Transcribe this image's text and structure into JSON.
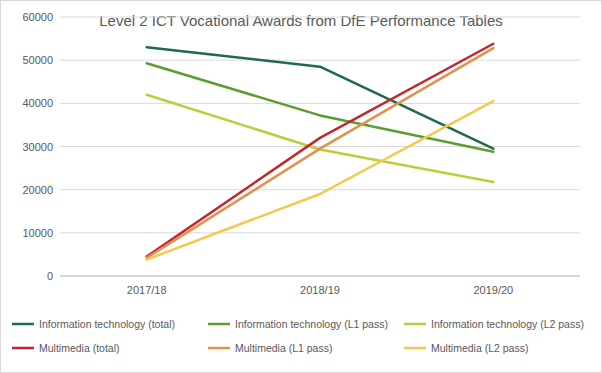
{
  "chart_data": {
    "type": "line",
    "title": "Level 2 ICT Vocational Awards from DfE Performance Tables",
    "categories": [
      "2017/18",
      "2018/19",
      "2019/20"
    ],
    "series": [
      {
        "name": "Information technology (total)",
        "color": "#1e6b47",
        "values": [
          53000,
          48500,
          29500
        ]
      },
      {
        "name": "Information technology (L1 pass)",
        "color": "#5a9e2f",
        "values": [
          49300,
          37200,
          28800
        ]
      },
      {
        "name": "Information technology (L2 pass)",
        "color": "#bccd3a",
        "values": [
          42000,
          29300,
          21800
        ]
      },
      {
        "name": "Multimedia (total)",
        "color": "#c0282d",
        "values": [
          4500,
          32000,
          53800
        ]
      },
      {
        "name": "Multimedia (L1 pass)",
        "color": "#e2904a",
        "values": [
          4200,
          29500,
          52800
        ]
      },
      {
        "name": "Multimedia (L2 pass)",
        "color": "#f2c94c",
        "values": [
          3800,
          19000,
          40500
        ]
      }
    ],
    "ylim": [
      0,
      60000
    ],
    "yticks": [
      0,
      10000,
      20000,
      30000,
      40000,
      50000,
      60000
    ],
    "grid": true,
    "legend": "bottom"
  }
}
